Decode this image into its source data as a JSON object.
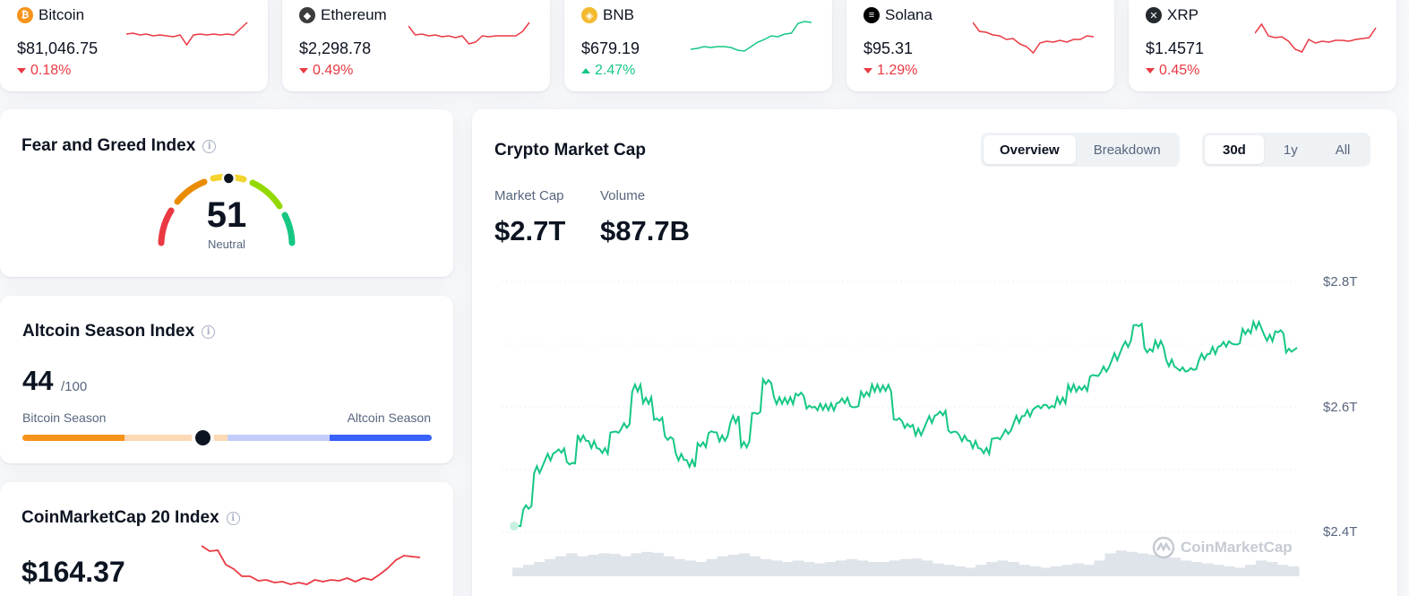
{
  "coins": [
    {
      "name": "Bitcoin",
      "price": "$81,046.75",
      "change": "0.18%",
      "direction": "down",
      "icon": "bitcoin-icon",
      "icon_glyph": "₿",
      "icon_color": "#f7931a",
      "spark": [
        16,
        15,
        17,
        16,
        18,
        17,
        18,
        19,
        17,
        28,
        17,
        16,
        17,
        16,
        17,
        16,
        17,
        10,
        3
      ]
    },
    {
      "name": "Ethereum",
      "price": "$2,298.78",
      "change": "0.49%",
      "direction": "down",
      "icon": "ethereum-icon",
      "icon_glyph": "◆",
      "icon_color": "#3c3c3d",
      "spark": [
        7,
        17,
        16,
        18,
        17,
        19,
        18,
        20,
        18,
        27,
        25,
        18,
        19,
        18,
        18,
        18,
        18,
        13,
        3
      ]
    },
    {
      "name": "BNB",
      "price": "$679.19",
      "change": "2.47%",
      "direction": "up",
      "icon": "bnb-icon",
      "icon_glyph": "◈",
      "icon_color": "#f3ba2f",
      "spark": [
        33,
        32,
        30,
        31,
        30,
        30,
        31,
        34,
        35,
        30,
        25,
        22,
        18,
        19,
        16,
        15,
        4,
        2,
        3
      ]
    },
    {
      "name": "Solana",
      "price": "$95.31",
      "change": "1.29%",
      "direction": "down",
      "icon": "solana-icon",
      "icon_glyph": "≡",
      "icon_color": "#000000",
      "spark": [
        3,
        13,
        14,
        17,
        18,
        22,
        21,
        27,
        30,
        37,
        26,
        24,
        25,
        23,
        25,
        22,
        22,
        18,
        19
      ]
    },
    {
      "name": "XRP",
      "price": "$1.4571",
      "change": "0.45%",
      "direction": "down",
      "icon": "xrp-icon",
      "icon_glyph": "✕",
      "icon_color": "#23292f",
      "spark": [
        15,
        5,
        18,
        20,
        19,
        24,
        33,
        36,
        22,
        26,
        24,
        25,
        23,
        23,
        24,
        22,
        21,
        20,
        9
      ]
    }
  ],
  "fear_greed": {
    "title": "Fear and Greed Index",
    "value": "51",
    "label": "Neutral",
    "value_fraction": 0.51
  },
  "altcoin_season": {
    "title": "Altcoin Season Index",
    "value": "44",
    "max": "/100",
    "left_label": "Bitcoin Season",
    "right_label": "Altcoin Season",
    "value_fraction": 0.44
  },
  "cmc20": {
    "title": "CoinMarketCap 20 Index",
    "price": "$164.37",
    "spark": [
      2,
      5,
      7,
      20,
      28,
      33,
      36,
      38,
      40,
      40,
      42,
      42,
      43,
      42,
      40,
      39,
      40,
      38,
      38,
      39,
      38,
      37,
      34,
      24,
      18,
      10,
      14,
      12
    ]
  },
  "market_cap": {
    "title": "Crypto Market Cap",
    "view_tabs": [
      "Overview",
      "Breakdown"
    ],
    "active_view": "Overview",
    "range_tabs": [
      "30d",
      "1y",
      "All"
    ],
    "active_range": "30d",
    "metrics": [
      {
        "label": "Market Cap",
        "value": "$2.7T"
      },
      {
        "label": "Volume",
        "value": "$87.7B"
      }
    ],
    "watermark": "CoinMarketCap"
  },
  "chart_data": {
    "type": "line",
    "title": "Crypto Market Cap",
    "ylim": [
      2.4,
      2.8
    ],
    "y_ticks": [
      "$2.8T",
      "$2.6T",
      "$2.4T"
    ],
    "y_tick_values": [
      2.8,
      2.6,
      2.4
    ],
    "series": [
      {
        "values": [
          2.41,
          2.44,
          2.5,
          2.52,
          2.53,
          2.51,
          2.55,
          2.54,
          2.53,
          2.56,
          2.57,
          2.63,
          2.61,
          2.58,
          2.55,
          2.52,
          2.51,
          2.54,
          2.56,
          2.55,
          2.58,
          2.54,
          2.59,
          2.64,
          2.61,
          2.61,
          2.62,
          2.6,
          2.6,
          2.6,
          2.61,
          2.6,
          2.62,
          2.63,
          2.63,
          2.58,
          2.57,
          2.56,
          2.58,
          2.59,
          2.56,
          2.55,
          2.54,
          2.53,
          2.55,
          2.56,
          2.58,
          2.59,
          2.6,
          2.6,
          2.61,
          2.63,
          2.63,
          2.65,
          2.66,
          2.68,
          2.7,
          2.73,
          2.69,
          2.7,
          2.67,
          2.66,
          2.66,
          2.68,
          2.69,
          2.7,
          2.7,
          2.72,
          2.73,
          2.71,
          2.72,
          2.69,
          2.7
        ]
      }
    ],
    "volume": [
      0.3,
      0.4,
      0.5,
      0.6,
      0.7,
      0.8,
      0.7,
      0.75,
      0.8,
      0.78,
      0.7,
      0.8,
      0.85,
      0.82,
      0.7,
      0.6,
      0.55,
      0.5,
      0.6,
      0.7,
      0.75,
      0.8,
      0.7,
      0.6,
      0.55,
      0.5,
      0.55,
      0.5,
      0.45,
      0.5,
      0.55,
      0.6,
      0.55,
      0.5,
      0.5,
      0.55,
      0.6,
      0.62,
      0.55,
      0.45,
      0.4,
      0.35,
      0.3,
      0.4,
      0.5,
      0.55,
      0.5,
      0.4,
      0.35,
      0.3,
      0.35,
      0.4,
      0.45,
      0.4,
      0.55,
      0.8,
      0.9,
      0.85,
      0.8,
      0.75,
      0.7,
      0.65,
      0.55,
      0.5,
      0.45,
      0.4,
      0.35,
      0.3,
      0.4,
      0.55,
      0.5,
      0.4,
      0.35
    ]
  }
}
